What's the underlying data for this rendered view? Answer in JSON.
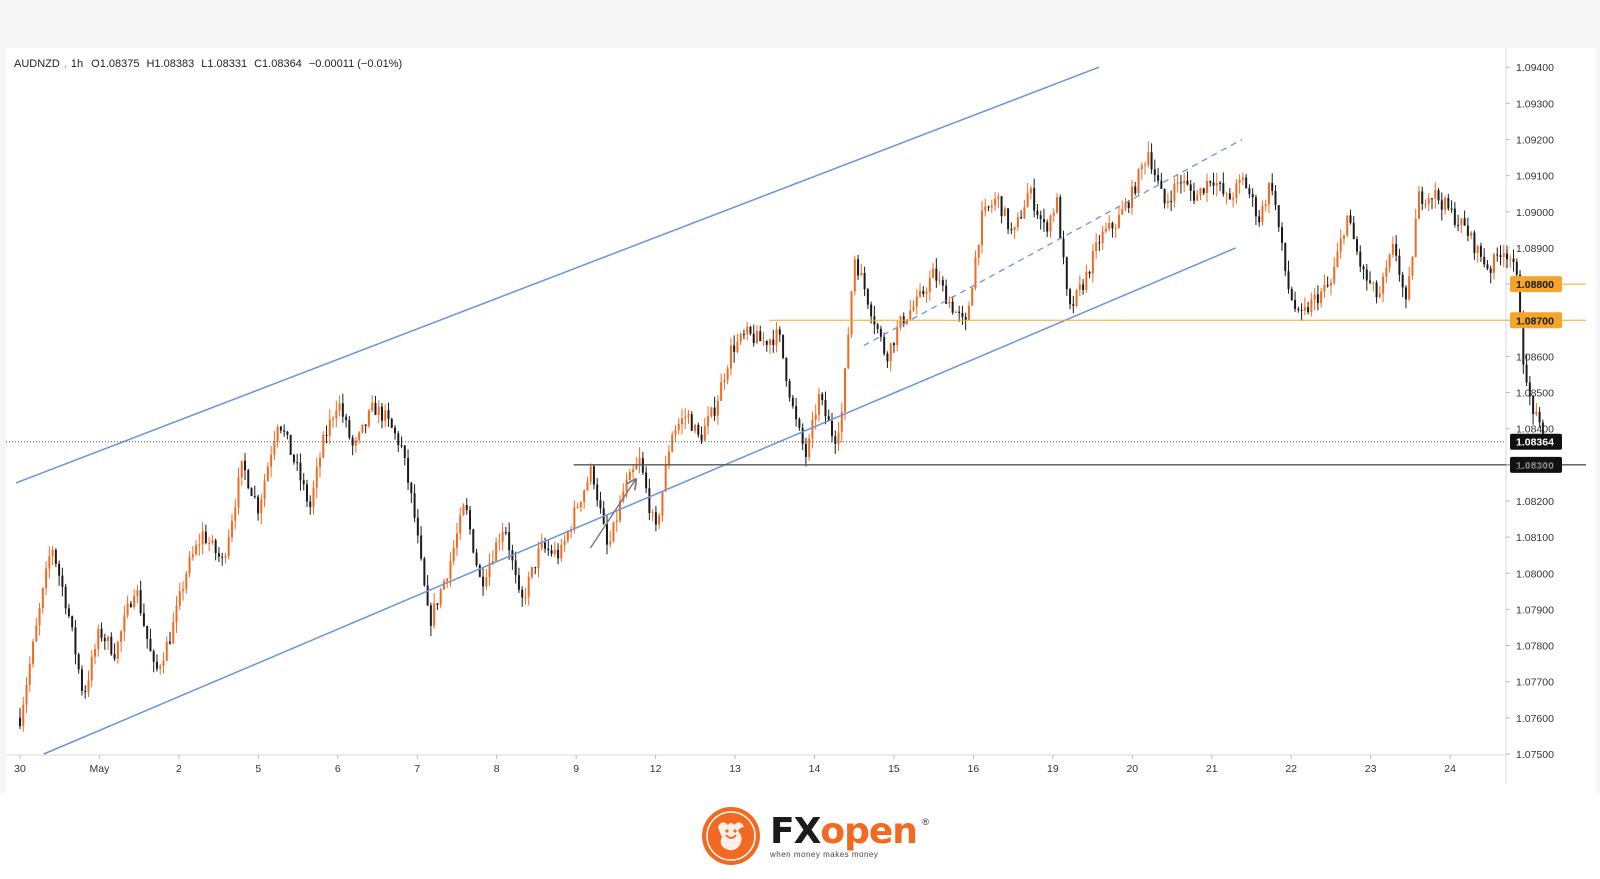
{
  "chart_data": {
    "type": "candlestick",
    "symbol": "AUDNZD",
    "timeframe": "1h",
    "ohlc_header": {
      "open": "O1.08375",
      "high": "H1.08383",
      "low": "L1.08331",
      "close": "C1.08364",
      "change": "−0.00011 (−0.01%)"
    },
    "x_ticks": [
      "30",
      "May",
      "2",
      "5",
      "6",
      "7",
      "8",
      "9",
      "12",
      "13",
      "14",
      "15",
      "16",
      "19",
      "20",
      "21",
      "22",
      "23",
      "24"
    ],
    "y_ticks": [
      "1.09400",
      "1.09300",
      "1.09200",
      "1.09100",
      "1.09000",
      "1.08900",
      "1.08800",
      "1.08700",
      "1.08600",
      "1.08500",
      "1.08400",
      "1.08300",
      "1.08200",
      "1.08100",
      "1.08000",
      "1.07900",
      "1.07800",
      "1.07700",
      "1.07600",
      "1.07500"
    ],
    "ylim": [
      1.075,
      1.0942
    ],
    "price_path": [
      [
        0,
        1.076
      ],
      [
        0.25,
        1.079
      ],
      [
        0.4,
        1.0808
      ],
      [
        0.6,
        1.079
      ],
      [
        0.8,
        1.0766
      ],
      [
        1.0,
        1.0784
      ],
      [
        1.2,
        1.0778
      ],
      [
        1.45,
        1.0797
      ],
      [
        1.7,
        1.0772
      ],
      [
        1.9,
        1.0783
      ],
      [
        2.1,
        1.0801
      ],
      [
        2.3,
        1.0811
      ],
      [
        2.55,
        1.0803
      ],
      [
        2.8,
        1.083
      ],
      [
        3.0,
        1.0818
      ],
      [
        3.25,
        1.0843
      ],
      [
        3.5,
        1.0828
      ],
      [
        3.65,
        1.0818
      ],
      [
        3.8,
        1.0835
      ],
      [
        4.0,
        1.0848
      ],
      [
        4.2,
        1.0834
      ],
      [
        4.45,
        1.0846
      ],
      [
        4.6,
        1.0843
      ],
      [
        4.8,
        1.0835
      ],
      [
        4.95,
        1.0818
      ],
      [
        5.15,
        1.0786
      ],
      [
        5.4,
        1.0802
      ],
      [
        5.6,
        1.0819
      ],
      [
        5.8,
        1.0797
      ],
      [
        6.1,
        1.0814
      ],
      [
        6.3,
        1.0791
      ],
      [
        6.55,
        1.0807
      ],
      [
        6.8,
        1.0805
      ],
      [
        7.0,
        1.0818
      ],
      [
        7.2,
        1.0829
      ],
      [
        7.4,
        1.0806
      ],
      [
        7.6,
        1.0823
      ],
      [
        7.8,
        1.0831
      ],
      [
        8.0,
        1.0811
      ],
      [
        8.2,
        1.0839
      ],
      [
        8.4,
        1.0844
      ],
      [
        8.55,
        1.0837
      ],
      [
        8.75,
        1.0846
      ],
      [
        8.95,
        1.0862
      ],
      [
        9.15,
        1.0866
      ],
      [
        9.35,
        1.0864
      ],
      [
        9.55,
        1.0866
      ],
      [
        9.75,
        1.0843
      ],
      [
        9.9,
        1.0832
      ],
      [
        10.05,
        1.0849
      ],
      [
        10.25,
        1.0837
      ],
      [
        10.35,
        1.0845
      ],
      [
        10.5,
        1.0888
      ],
      [
        10.7,
        1.0874
      ],
      [
        10.9,
        1.086
      ],
      [
        11.1,
        1.087
      ],
      [
        11.3,
        1.0875
      ],
      [
        11.5,
        1.0883
      ],
      [
        11.7,
        1.0875
      ],
      [
        11.9,
        1.0868
      ],
      [
        12.1,
        1.0898
      ],
      [
        12.3,
        1.0904
      ],
      [
        12.5,
        1.0893
      ],
      [
        12.7,
        1.0906
      ],
      [
        12.9,
        1.0895
      ],
      [
        13.05,
        1.0903
      ],
      [
        13.2,
        1.0872
      ],
      [
        13.4,
        1.0881
      ],
      [
        13.6,
        1.0893
      ],
      [
        13.8,
        1.0897
      ],
      [
        14.0,
        1.0905
      ],
      [
        14.2,
        1.0917
      ],
      [
        14.4,
        1.0902
      ],
      [
        14.6,
        1.0909
      ],
      [
        14.8,
        1.0904
      ],
      [
        15.0,
        1.091
      ],
      [
        15.2,
        1.0903
      ],
      [
        15.4,
        1.0909
      ],
      [
        15.6,
        1.0898
      ],
      [
        15.75,
        1.0909
      ],
      [
        15.95,
        1.088
      ],
      [
        16.1,
        1.087
      ],
      [
        16.3,
        1.0876
      ],
      [
        16.5,
        1.088
      ],
      [
        16.7,
        1.0899
      ],
      [
        16.9,
        1.0883
      ],
      [
        17.1,
        1.0876
      ],
      [
        17.3,
        1.0891
      ],
      [
        17.45,
        1.0873
      ],
      [
        17.6,
        1.0904
      ],
      [
        17.8,
        1.0905
      ],
      [
        18.0,
        1.09
      ],
      [
        18.2,
        1.0895
      ],
      [
        18.35,
        1.0889
      ],
      [
        18.5,
        1.0884
      ],
      [
        18.65,
        1.089
      ],
      [
        18.75,
        1.0888
      ],
      [
        18.85,
        1.088
      ],
      [
        18.95,
        1.0852
      ],
      [
        19.05,
        1.0845
      ],
      [
        19.15,
        1.0838
      ],
      [
        19.25,
        1.0836
      ]
    ],
    "channel": {
      "upper": [
        [
          -0.05,
          1.0825
        ],
        [
          13.58,
          1.094
        ]
      ],
      "mid_dashed": [
        [
          10.62,
          1.0863
        ],
        [
          15.38,
          1.092
        ]
      ],
      "lower": [
        [
          0.3,
          1.075
        ],
        [
          15.3,
          1.089
        ]
      ]
    },
    "levels": [
      {
        "price": 1.088,
        "color": "#f5a623",
        "label": "1.08800",
        "tag_fill": "#f7a42a",
        "tag_text": "#000000"
      },
      {
        "price": 1.087,
        "color": "#f5a623",
        "label": "1.08700",
        "tag_fill": "#f7a42a",
        "tag_text": "#000000"
      },
      {
        "price": 1.083,
        "color": "#555555",
        "label": "1.08300",
        "tag_fill": "#111111",
        "tag_text": "#ffffff"
      }
    ],
    "current_price": {
      "price": 1.08364,
      "label": "1.08364",
      "tag_fill": "#111111",
      "tag_text": "#ffffff"
    },
    "annotation": "arrow",
    "colors": {
      "up": "#f26a21",
      "down": "#1b1b1b",
      "channel": "#6b93dc",
      "level": "#f5a623"
    }
  },
  "brand": {
    "fx": "FX",
    "open": "open",
    "reg": "®",
    "tagline": "when money makes money"
  }
}
